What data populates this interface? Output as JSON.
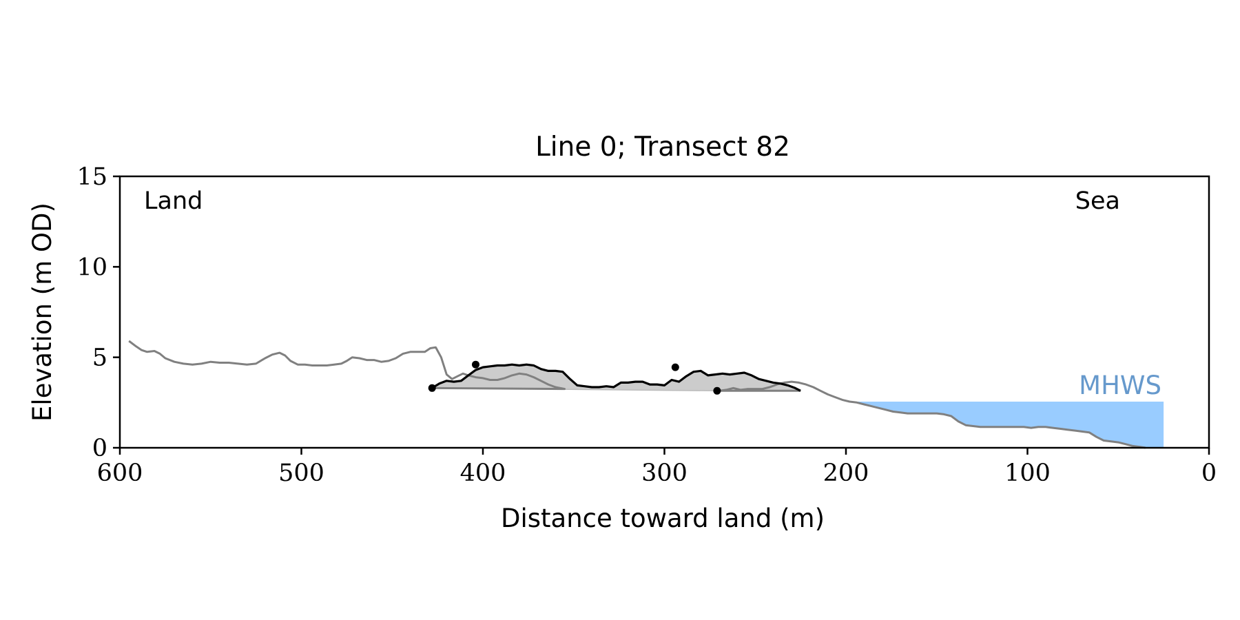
{
  "chart_data": {
    "type": "line",
    "title": "Line 0; Transect 82",
    "xlabel": "Distance toward land (m)",
    "ylabel": "Elevation (m OD)",
    "xlim": [
      600,
      0
    ],
    "ylim": [
      0,
      15
    ],
    "xticks": [
      600,
      500,
      400,
      300,
      200,
      100,
      0
    ],
    "yticks": [
      0,
      5,
      10,
      15
    ],
    "grid": false,
    "annotations": {
      "land": "Land",
      "sea": "Sea",
      "mhws": "MHWS"
    },
    "mhws": {
      "level": 2.55,
      "x_from": 200,
      "x_to": 25
    },
    "colors": {
      "profile": "#808080",
      "dune": "#000000",
      "dune_fill": "#cccccc",
      "water": "#99ccff",
      "mhws_label": "#6699cc"
    },
    "profile": [
      [
        595,
        5.9
      ],
      [
        591,
        5.6
      ],
      [
        588,
        5.4
      ],
      [
        585,
        5.3
      ],
      [
        581,
        5.35
      ],
      [
        578,
        5.2
      ],
      [
        575,
        4.95
      ],
      [
        570,
        4.75
      ],
      [
        565,
        4.65
      ],
      [
        560,
        4.6
      ],
      [
        555,
        4.65
      ],
      [
        550,
        4.75
      ],
      [
        545,
        4.7
      ],
      [
        540,
        4.7
      ],
      [
        535,
        4.65
      ],
      [
        530,
        4.6
      ],
      [
        525,
        4.65
      ],
      [
        520,
        4.95
      ],
      [
        516,
        5.15
      ],
      [
        512,
        5.25
      ],
      [
        509,
        5.1
      ],
      [
        506,
        4.8
      ],
      [
        502,
        4.6
      ],
      [
        498,
        4.6
      ],
      [
        494,
        4.55
      ],
      [
        490,
        4.55
      ],
      [
        486,
        4.55
      ],
      [
        482,
        4.6
      ],
      [
        478,
        4.65
      ],
      [
        475,
        4.8
      ],
      [
        472,
        5.0
      ],
      [
        468,
        4.95
      ],
      [
        464,
        4.85
      ],
      [
        460,
        4.85
      ],
      [
        456,
        4.75
      ],
      [
        452,
        4.8
      ],
      [
        448,
        4.95
      ],
      [
        444,
        5.2
      ],
      [
        440,
        5.3
      ],
      [
        436,
        5.3
      ],
      [
        432,
        5.3
      ],
      [
        429,
        5.5
      ],
      [
        426,
        5.55
      ],
      [
        423,
        5.0
      ],
      [
        420,
        4.05
      ],
      [
        417,
        3.8
      ],
      [
        414,
        3.95
      ],
      [
        411,
        4.1
      ],
      [
        408,
        4.0
      ],
      [
        404,
        3.9
      ],
      [
        400,
        3.85
      ],
      [
        396,
        3.75
      ],
      [
        392,
        3.75
      ],
      [
        388,
        3.85
      ],
      [
        384,
        4.0
      ],
      [
        380,
        4.1
      ],
      [
        376,
        4.05
      ],
      [
        372,
        3.9
      ],
      [
        368,
        3.7
      ],
      [
        364,
        3.5
      ],
      [
        360,
        3.35
      ],
      [
        355,
        3.25
      ],
      [
        270,
        3.15
      ],
      [
        266,
        3.2
      ],
      [
        262,
        3.3
      ],
      [
        258,
        3.2
      ],
      [
        254,
        3.25
      ],
      [
        250,
        3.25
      ],
      [
        246,
        3.25
      ],
      [
        242,
        3.35
      ],
      [
        238,
        3.5
      ],
      [
        234,
        3.6
      ],
      [
        230,
        3.65
      ],
      [
        226,
        3.6
      ],
      [
        222,
        3.5
      ],
      [
        218,
        3.35
      ],
      [
        214,
        3.15
      ],
      [
        210,
        2.95
      ],
      [
        206,
        2.8
      ],
      [
        202,
        2.65
      ],
      [
        198,
        2.55
      ],
      [
        194,
        2.5
      ],
      [
        190,
        2.4
      ],
      [
        186,
        2.3
      ],
      [
        182,
        2.2
      ],
      [
        178,
        2.1
      ],
      [
        174,
        2.0
      ],
      [
        170,
        1.95
      ],
      [
        166,
        1.9
      ],
      [
        162,
        1.9
      ],
      [
        158,
        1.9
      ],
      [
        154,
        1.9
      ],
      [
        150,
        1.9
      ],
      [
        146,
        1.85
      ],
      [
        142,
        1.75
      ],
      [
        138,
        1.45
      ],
      [
        134,
        1.25
      ],
      [
        130,
        1.2
      ],
      [
        126,
        1.15
      ],
      [
        122,
        1.15
      ],
      [
        118,
        1.15
      ],
      [
        114,
        1.15
      ],
      [
        110,
        1.15
      ],
      [
        106,
        1.15
      ],
      [
        102,
        1.15
      ],
      [
        98,
        1.1
      ],
      [
        94,
        1.15
      ],
      [
        90,
        1.15
      ],
      [
        86,
        1.1
      ],
      [
        82,
        1.05
      ],
      [
        78,
        1.0
      ],
      [
        74,
        0.95
      ],
      [
        70,
        0.9
      ],
      [
        66,
        0.85
      ],
      [
        62,
        0.6
      ],
      [
        58,
        0.4
      ],
      [
        54,
        0.35
      ],
      [
        50,
        0.3
      ],
      [
        46,
        0.2
      ],
      [
        42,
        0.1
      ],
      [
        38,
        0.05
      ],
      [
        35,
        0.0
      ]
    ],
    "dune_profile": [
      [
        428,
        3.3
      ],
      [
        424,
        3.55
      ],
      [
        420,
        3.7
      ],
      [
        416,
        3.65
      ],
      [
        412,
        3.7
      ],
      [
        408,
        4.0
      ],
      [
        404,
        4.3
      ],
      [
        400,
        4.45
      ],
      [
        396,
        4.5
      ],
      [
        392,
        4.55
      ],
      [
        388,
        4.55
      ],
      [
        384,
        4.6
      ],
      [
        380,
        4.55
      ],
      [
        376,
        4.6
      ],
      [
        372,
        4.55
      ],
      [
        368,
        4.35
      ],
      [
        364,
        4.25
      ],
      [
        360,
        4.25
      ],
      [
        356,
        4.2
      ],
      [
        352,
        3.8
      ],
      [
        348,
        3.45
      ],
      [
        344,
        3.4
      ],
      [
        340,
        3.35
      ],
      [
        336,
        3.35
      ],
      [
        332,
        3.4
      ],
      [
        328,
        3.35
      ],
      [
        324,
        3.6
      ],
      [
        320,
        3.6
      ],
      [
        316,
        3.65
      ],
      [
        312,
        3.65
      ],
      [
        308,
        3.5
      ],
      [
        304,
        3.5
      ],
      [
        300,
        3.45
      ],
      [
        296,
        3.75
      ],
      [
        292,
        3.65
      ],
      [
        288,
        3.95
      ],
      [
        284,
        4.2
      ],
      [
        280,
        4.25
      ],
      [
        276,
        4.0
      ],
      [
        272,
        4.05
      ],
      [
        268,
        4.1
      ],
      [
        264,
        4.05
      ],
      [
        260,
        4.1
      ],
      [
        256,
        4.15
      ],
      [
        252,
        4.0
      ],
      [
        248,
        3.8
      ],
      [
        244,
        3.7
      ],
      [
        240,
        3.6
      ],
      [
        236,
        3.55
      ],
      [
        232,
        3.45
      ],
      [
        228,
        3.3
      ],
      [
        225,
        3.15
      ]
    ],
    "dune_base": [
      [
        428,
        3.3
      ],
      [
        271,
        3.15
      ]
    ],
    "dune_markers": [
      [
        428,
        3.3
      ],
      [
        404,
        4.6
      ],
      [
        294,
        4.45
      ],
      [
        271,
        3.15
      ]
    ]
  }
}
